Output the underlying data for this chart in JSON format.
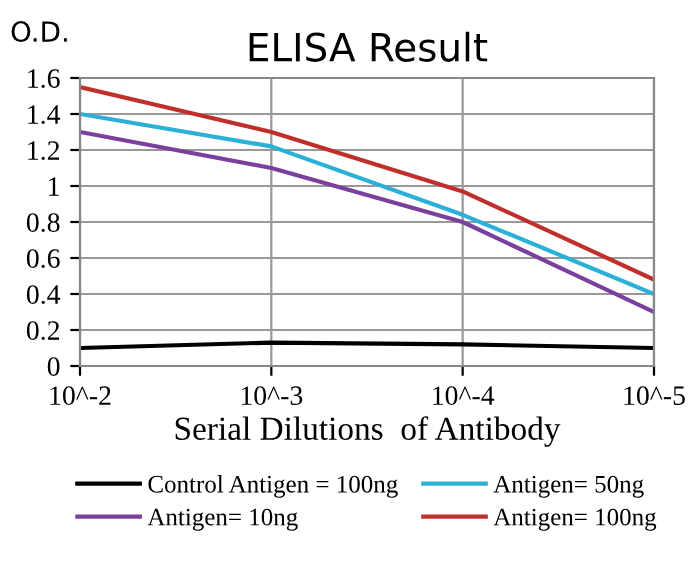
{
  "chart_data": {
    "type": "line",
    "title": "ELISA Result",
    "ylabel": "O.D.",
    "xlabel": "Serial Dilutions  of Antibody",
    "categories": [
      "10^-2",
      "10^-3",
      "10^-4",
      "10^-5"
    ],
    "series": [
      {
        "name": "Control Antigen = 100ng",
        "color": "#000000",
        "values": [
          0.1,
          0.13,
          0.12,
          0.1
        ]
      },
      {
        "name": "Antigen= 10ng",
        "color": "#7b3f9e",
        "values": [
          1.3,
          1.1,
          0.8,
          0.3
        ]
      },
      {
        "name": "Antigen= 50ng",
        "color": "#2bb0d8",
        "values": [
          1.4,
          1.22,
          0.84,
          0.4
        ]
      },
      {
        "name": "Antigen= 100ng",
        "color": "#c0302a",
        "values": [
          1.55,
          1.3,
          0.97,
          0.48
        ]
      }
    ],
    "ylim": [
      0,
      1.6
    ],
    "yticks": [
      0,
      0.2,
      0.4,
      0.6,
      0.8,
      1,
      1.2,
      1.4,
      1.6
    ],
    "grid": true,
    "legend": "bottom",
    "marker": "none",
    "line_style": "solid"
  }
}
